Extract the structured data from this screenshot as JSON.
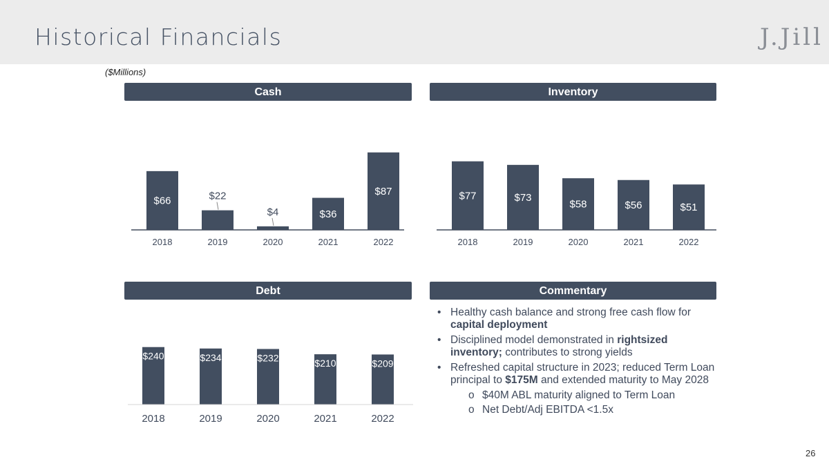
{
  "slide": {
    "title": "Historical Financials",
    "logo": "J.Jill",
    "units": "($Millions)",
    "page_number": "26"
  },
  "colors": {
    "bar": "#424e60",
    "header_bar": "#424e60",
    "text": "#404a5c",
    "axis": "#404a5c"
  },
  "panels": {
    "cash": "Cash",
    "inventory": "Inventory",
    "debt": "Debt",
    "commentary": "Commentary"
  },
  "chart_data": [
    {
      "id": "cash",
      "type": "bar",
      "title": "Cash",
      "categories": [
        "2018",
        "2019",
        "2020",
        "2021",
        "2022"
      ],
      "values": [
        66,
        22,
        4,
        36,
        87
      ],
      "labels": [
        "$66",
        "$22",
        "$4",
        "$36",
        "$87"
      ],
      "ylim": [
        0,
        100
      ]
    },
    {
      "id": "inventory",
      "type": "bar",
      "title": "Inventory",
      "categories": [
        "2018",
        "2019",
        "2020",
        "2021",
        "2022"
      ],
      "values": [
        77,
        73,
        58,
        56,
        51
      ],
      "labels": [
        "$77",
        "$73",
        "$58",
        "$56",
        "$51"
      ],
      "ylim": [
        0,
        100
      ]
    },
    {
      "id": "debt",
      "type": "bar",
      "title": "Debt",
      "categories": [
        "2018",
        "2019",
        "2020",
        "2021",
        "2022"
      ],
      "values": [
        240,
        234,
        232,
        210,
        209
      ],
      "labels": [
        "$240",
        "$234",
        "$232",
        "$210",
        "$209"
      ],
      "ylim": [
        0,
        300
      ]
    }
  ],
  "commentary": {
    "b1": {
      "t1": "Healthy cash balance and strong free cash flow for ",
      "b": "capital deployment"
    },
    "b2": {
      "t1": "Disciplined model demonstrated in ",
      "b": "rightsized inventory;",
      "t2": " contributes to strong yields"
    },
    "b3": {
      "t1": "Refreshed capital structure in 2023; reduced Term Loan principal to ",
      "b": "$175M",
      "t2": " and extended maturity to May 2028"
    },
    "s1": "$40M ABL maturity aligned to Term Loan",
    "s2": "Net Debt/Adj EBITDA <1.5x"
  }
}
